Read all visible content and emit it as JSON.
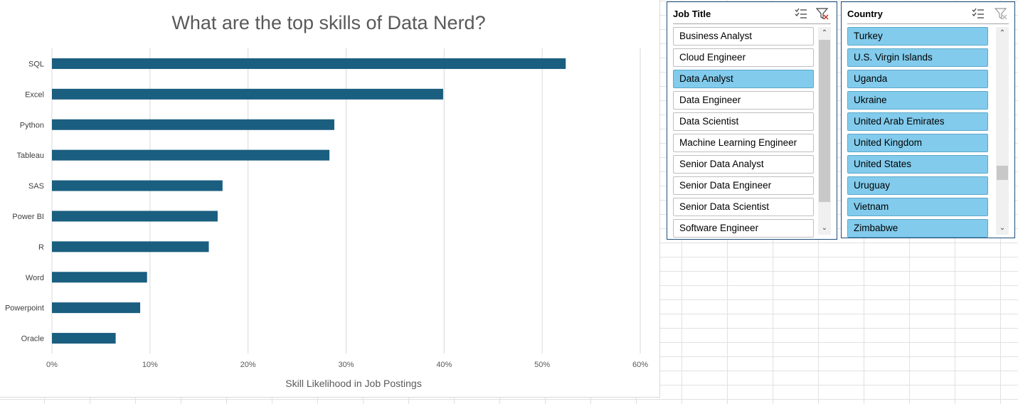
{
  "chart_data": {
    "type": "bar",
    "orientation": "horizontal",
    "title": "What are the top skills of Data Nerd?",
    "xlabel": "Skill Likelihood in Job Postings",
    "ylabel": "",
    "categories": [
      "SQL",
      "Excel",
      "Python",
      "Tableau",
      "SAS",
      "Power BI",
      "R",
      "Word",
      "Powerpoint",
      "Oracle"
    ],
    "values": [
      0.524,
      0.399,
      0.288,
      0.283,
      0.174,
      0.169,
      0.16,
      0.097,
      0.09,
      0.065
    ],
    "xlim": [
      0,
      0.6
    ],
    "xticks": [
      "0%",
      "10%",
      "20%",
      "30%",
      "40%",
      "50%",
      "60%"
    ],
    "grid": true,
    "bar_color": "#1a5e80"
  },
  "slicers": {
    "job_title": {
      "title": "Job Title",
      "items": [
        {
          "label": "Business Analyst",
          "selected": false
        },
        {
          "label": "Cloud Engineer",
          "selected": false
        },
        {
          "label": "Data Analyst",
          "selected": true
        },
        {
          "label": "Data Engineer",
          "selected": false
        },
        {
          "label": "Data Scientist",
          "selected": false
        },
        {
          "label": "Machine Learning Engineer",
          "selected": false
        },
        {
          "label": "Senior Data Analyst",
          "selected": false
        },
        {
          "label": "Senior Data Engineer",
          "selected": false
        },
        {
          "label": "Senior Data Scientist",
          "selected": false
        },
        {
          "label": "Software Engineer",
          "selected": false
        }
      ]
    },
    "country": {
      "title": "Country",
      "items": [
        {
          "label": "Turkey",
          "selected": true
        },
        {
          "label": "U.S. Virgin Islands",
          "selected": true
        },
        {
          "label": "Uganda",
          "selected": true
        },
        {
          "label": "Ukraine",
          "selected": true
        },
        {
          "label": "United Arab Emirates",
          "selected": true
        },
        {
          "label": "United Kingdom",
          "selected": true
        },
        {
          "label": "United States",
          "selected": true
        },
        {
          "label": "Uruguay",
          "selected": true
        },
        {
          "label": "Vietnam",
          "selected": true
        },
        {
          "label": "Zimbabwe",
          "selected": true
        }
      ]
    }
  },
  "icons": {
    "multi_select": "multi-select-icon",
    "clear_filter": "clear-filter-icon",
    "scroll_up": "chevron-up-icon",
    "scroll_down": "chevron-down-icon"
  },
  "colors": {
    "selected_item": "#82cbec",
    "slicer_border": "#1f4e79",
    "clear_filter_x": "#c0392b"
  }
}
